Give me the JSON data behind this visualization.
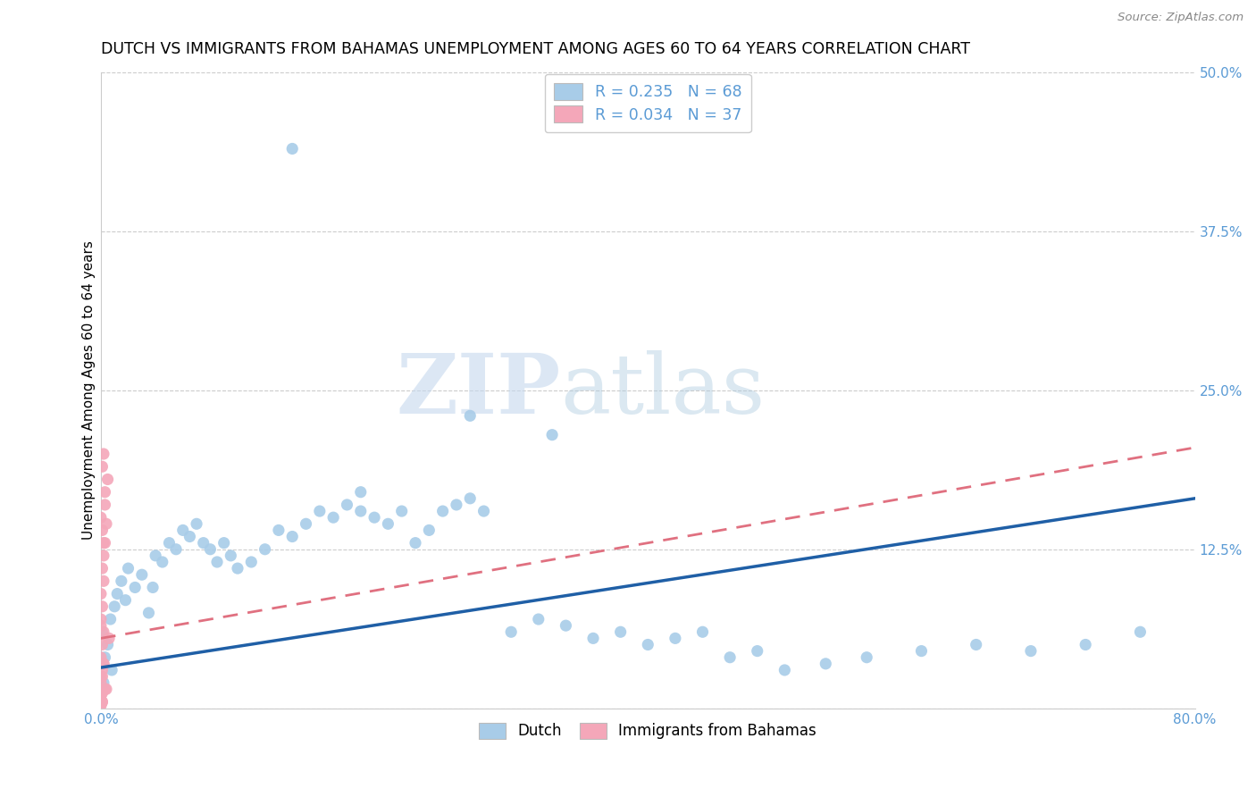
{
  "title": "DUTCH VS IMMIGRANTS FROM BAHAMAS UNEMPLOYMENT AMONG AGES 60 TO 64 YEARS CORRELATION CHART",
  "source": "Source: ZipAtlas.com",
  "ylabel": "Unemployment Among Ages 60 to 64 years",
  "xlim": [
    0.0,
    0.8
  ],
  "ylim": [
    0.0,
    0.5
  ],
  "yticks_right": [
    0.0,
    0.125,
    0.25,
    0.375,
    0.5
  ],
  "ytick_labels_right": [
    "",
    "12.5%",
    "25.0%",
    "37.5%",
    "50.0%"
  ],
  "blue_color": "#a8cce8",
  "pink_color": "#f4a7b9",
  "blue_line_color": "#1f5fa6",
  "pink_line_color": "#e07080",
  "legend_R_blue": "R = 0.235",
  "legend_N_blue": "N = 68",
  "legend_R_pink": "R = 0.034",
  "legend_N_pink": "N = 37",
  "legend_label_blue": "Dutch",
  "legend_label_pink": "Immigrants from Bahamas",
  "watermark_zip": "ZIP",
  "watermark_atlas": "atlas",
  "grid_color": "#cccccc",
  "background_color": "#ffffff",
  "title_fontsize": 12.5,
  "axis_label_fontsize": 11,
  "tick_fontsize": 11,
  "tick_color": "#5b9bd5",
  "blue_trend_x0": 0.0,
  "blue_trend_y0": 0.032,
  "blue_trend_x1": 0.8,
  "blue_trend_y1": 0.165,
  "pink_trend_x0": 0.0,
  "pink_trend_y0": 0.055,
  "pink_trend_x1": 0.8,
  "pink_trend_y1": 0.205,
  "blue_x": [
    0.005,
    0.008,
    0.002,
    0.001,
    0.003,
    0.01,
    0.015,
    0.012,
    0.007,
    0.02,
    0.025,
    0.018,
    0.03,
    0.035,
    0.04,
    0.038,
    0.045,
    0.05,
    0.055,
    0.06,
    0.065,
    0.07,
    0.075,
    0.08,
    0.085,
    0.09,
    0.095,
    0.1,
    0.11,
    0.12,
    0.13,
    0.14,
    0.15,
    0.16,
    0.17,
    0.18,
    0.19,
    0.2,
    0.21,
    0.22,
    0.23,
    0.24,
    0.25,
    0.26,
    0.27,
    0.28,
    0.3,
    0.32,
    0.34,
    0.36,
    0.38,
    0.4,
    0.42,
    0.44,
    0.46,
    0.48,
    0.5,
    0.53,
    0.56,
    0.6,
    0.64,
    0.68,
    0.72,
    0.76,
    0.33,
    0.27,
    0.19,
    0.14
  ],
  "blue_y": [
    0.05,
    0.03,
    0.02,
    0.06,
    0.04,
    0.08,
    0.1,
    0.09,
    0.07,
    0.11,
    0.095,
    0.085,
    0.105,
    0.075,
    0.12,
    0.095,
    0.115,
    0.13,
    0.125,
    0.14,
    0.135,
    0.145,
    0.13,
    0.125,
    0.115,
    0.13,
    0.12,
    0.11,
    0.115,
    0.125,
    0.14,
    0.135,
    0.145,
    0.155,
    0.15,
    0.16,
    0.155,
    0.15,
    0.145,
    0.155,
    0.13,
    0.14,
    0.155,
    0.16,
    0.165,
    0.155,
    0.06,
    0.07,
    0.065,
    0.055,
    0.06,
    0.05,
    0.055,
    0.06,
    0.04,
    0.045,
    0.03,
    0.035,
    0.04,
    0.045,
    0.05,
    0.045,
    0.05,
    0.06,
    0.215,
    0.23,
    0.17,
    0.44
  ],
  "pink_x": [
    0.0,
    0.0,
    0.0,
    0.001,
    0.0,
    0.001,
    0.002,
    0.0,
    0.001,
    0.0,
    0.002,
    0.001,
    0.0,
    0.003,
    0.002,
    0.001,
    0.0,
    0.004,
    0.003,
    0.002,
    0.001,
    0.0,
    0.005,
    0.001,
    0.003,
    0.0,
    0.002,
    0.001,
    0.0,
    0.004,
    0.002,
    0.001,
    0.006,
    0.003,
    0.0,
    0.002,
    0.001
  ],
  "pink_y": [
    0.01,
    0.02,
    0.005,
    0.03,
    0.04,
    0.05,
    0.06,
    0.07,
    0.08,
    0.09,
    0.1,
    0.11,
    0.025,
    0.13,
    0.12,
    0.14,
    0.15,
    0.145,
    0.16,
    0.13,
    0.005,
    0.015,
    0.18,
    0.025,
    0.17,
    0.065,
    0.035,
    0.005,
    0.002,
    0.015,
    0.2,
    0.19,
    0.055,
    0.015,
    0.003,
    0.035,
    0.012
  ]
}
